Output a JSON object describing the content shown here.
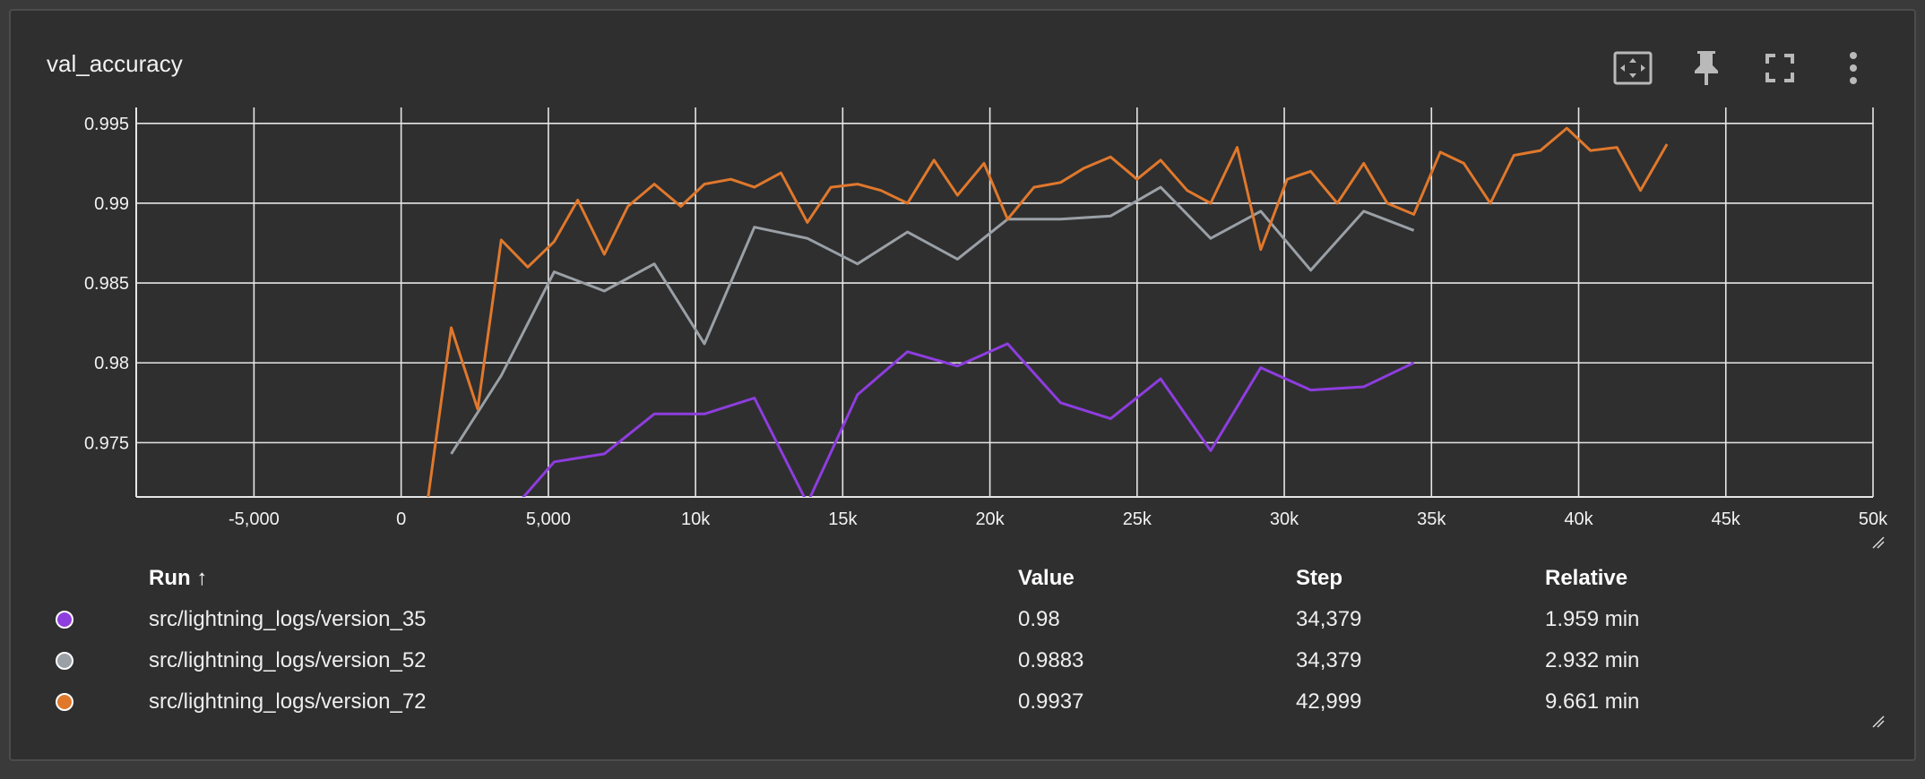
{
  "card": {
    "title": "val_accuracy",
    "toolbar": [
      {
        "name": "fit-domain-icon"
      },
      {
        "name": "pin-icon"
      },
      {
        "name": "fullscreen-icon"
      },
      {
        "name": "more-vert-icon"
      }
    ]
  },
  "chart_data": {
    "type": "line",
    "title": "val_accuracy",
    "xlabel": "",
    "ylabel": "",
    "xlim": [
      -9000,
      50000
    ],
    "ylim": [
      0.9716,
      0.996
    ],
    "x_ticks": [
      "-5,000",
      "0",
      "5,000",
      "10k",
      "15k",
      "20k",
      "25k",
      "30k",
      "35k",
      "40k",
      "45k",
      "50k"
    ],
    "x_tick_values": [
      -5000,
      0,
      5000,
      10000,
      15000,
      20000,
      25000,
      30000,
      35000,
      40000,
      45000,
      50000
    ],
    "y_ticks": [
      "0.975",
      "0.98",
      "0.985",
      "0.99",
      "0.995"
    ],
    "y_tick_values": [
      0.975,
      0.98,
      0.985,
      0.99,
      0.995
    ],
    "grid": true,
    "series": [
      {
        "name": "src/lightning_logs/version_35",
        "color": "#8e3ddf",
        "x": [
          3400,
          5200,
          6900,
          8600,
          10300,
          12000,
          13800,
          15500,
          17200,
          18900,
          20600,
          22400,
          24100,
          25800,
          27500,
          29200,
          30900,
          32700,
          34400
        ],
        "y": [
          0.97,
          0.9738,
          0.9743,
          0.9768,
          0.9768,
          0.9778,
          0.9712,
          0.978,
          0.9807,
          0.9798,
          0.9812,
          0.9775,
          0.9765,
          0.979,
          0.9745,
          0.9797,
          0.9783,
          0.9785,
          0.98
        ]
      },
      {
        "name": "src/lightning_logs/version_52",
        "color": "#9aa0a6",
        "x": [
          1700,
          3400,
          5200,
          6900,
          8600,
          10300,
          12000,
          13800,
          15500,
          17200,
          18900,
          20600,
          22400,
          24100,
          25800,
          27500,
          29200,
          30900,
          32700,
          34400
        ],
        "y": [
          0.9743,
          0.9792,
          0.9857,
          0.9845,
          0.9862,
          0.9812,
          0.9885,
          0.9878,
          0.9862,
          0.9882,
          0.9865,
          0.989,
          0.989,
          0.9892,
          0.991,
          0.9878,
          0.9895,
          0.9858,
          0.9895,
          0.9883
        ]
      },
      {
        "name": "src/lightning_logs/version_72",
        "color": "#e0782c",
        "x": [
          800,
          1700,
          2600,
          3400,
          4300,
          5200,
          6000,
          6900,
          7700,
          8600,
          9500,
          10300,
          11200,
          12000,
          12900,
          13800,
          14600,
          15500,
          16300,
          17200,
          18100,
          18900,
          19800,
          20600,
          21500,
          22400,
          23200,
          24100,
          25000,
          25800,
          26700,
          27500,
          28400,
          29200,
          30100,
          30900,
          31800,
          32700,
          33500,
          34400,
          35300,
          36100,
          37000,
          37800,
          38700,
          39600,
          40400,
          41300,
          42100,
          43000
        ],
        "y": [
          0.97,
          0.9822,
          0.9771,
          0.9877,
          0.986,
          0.9876,
          0.9902,
          0.9868,
          0.9898,
          0.9912,
          0.9898,
          0.9912,
          0.9915,
          0.991,
          0.9919,
          0.9888,
          0.991,
          0.9912,
          0.9908,
          0.99,
          0.9927,
          0.9905,
          0.9925,
          0.989,
          0.991,
          0.9913,
          0.9922,
          0.9929,
          0.9915,
          0.9927,
          0.9908,
          0.99,
          0.9935,
          0.9871,
          0.9915,
          0.992,
          0.99,
          0.9925,
          0.99,
          0.9893,
          0.9932,
          0.9925,
          0.99,
          0.993,
          0.9933,
          0.9947,
          0.9933,
          0.9935,
          0.9908,
          0.9937
        ]
      }
    ]
  },
  "table": {
    "headers": {
      "run": "Run ↑",
      "value": "Value",
      "step": "Step",
      "relative": "Relative"
    },
    "rows": [
      {
        "color": "#8e3ddf",
        "run": "src/lightning_logs/version_35",
        "value": "0.98",
        "step": "34,379",
        "relative": "1.959 min"
      },
      {
        "color": "#9aa0a6",
        "run": "src/lightning_logs/version_52",
        "value": "0.9883",
        "step": "34,379",
        "relative": "2.932 min"
      },
      {
        "color": "#e0782c",
        "run": "src/lightning_logs/version_72",
        "value": "0.9937",
        "step": "42,999",
        "relative": "9.661 min"
      }
    ]
  }
}
